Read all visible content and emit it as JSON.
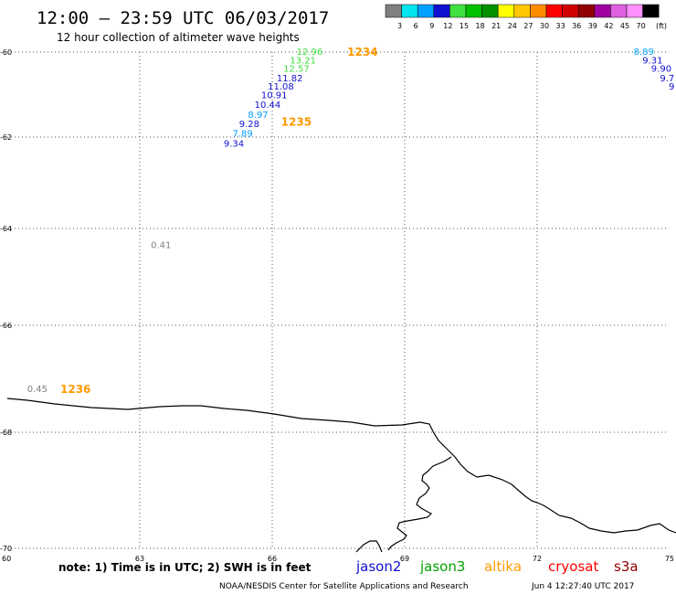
{
  "header": {
    "title": "12:00 — 23:59 UTC 06/03/2017",
    "subtitle": "12 hour collection of altimeter wave heights"
  },
  "color_scale": {
    "unit": "(ft)",
    "bins": [
      {
        "label": "3",
        "color": "#7f7f7f"
      },
      {
        "label": "6",
        "color": "#00e5ee"
      },
      {
        "label": "9",
        "color": "#00a0ff"
      },
      {
        "label": "12",
        "color": "#1010d0"
      },
      {
        "label": "15",
        "color": "#40e040"
      },
      {
        "label": "18",
        "color": "#00c000"
      },
      {
        "label": "21",
        "color": "#009000"
      },
      {
        "label": "24",
        "color": "#ffff00"
      },
      {
        "label": "27",
        "color": "#ffc800"
      },
      {
        "label": "30",
        "color": "#ff8c00"
      },
      {
        "label": "33",
        "color": "#ff0000"
      },
      {
        "label": "36",
        "color": "#d00000"
      },
      {
        "label": "39",
        "color": "#900000"
      },
      {
        "label": "42",
        "color": "#a000a0"
      },
      {
        "label": "45",
        "color": "#e060e0"
      },
      {
        "label": "70",
        "color": "#ff90ff"
      },
      {
        "label": "",
        "color": "#000000"
      }
    ]
  },
  "axes": {
    "lon_ticks": [
      "60",
      "63",
      "66",
      "69",
      "72",
      "75"
    ],
    "lat_ticks": [
      "-60",
      "-62",
      "-64",
      "-66",
      "-68",
      "-70"
    ],
    "lon_range": [
      60,
      75
    ],
    "lat_range": [
      -70,
      -60
    ]
  },
  "passes": [
    {
      "label": "1234",
      "lon": 67.7,
      "lat": -60.0,
      "color": "#ff9900"
    },
    {
      "label": "1235",
      "lon": 66.2,
      "lat": -61.65,
      "color": "#ff9900"
    },
    {
      "label": "1236",
      "lon": 61.2,
      "lat": -67.2,
      "color": "#ff9900"
    }
  ],
  "observations": [
    {
      "value": "12.96",
      "lon": 66.55,
      "lat": -60.0,
      "color": "#40e040"
    },
    {
      "value": "13.21",
      "lon": 66.4,
      "lat": -60.2,
      "color": "#40e040"
    },
    {
      "value": "12.57",
      "lon": 66.25,
      "lat": -60.4,
      "color": "#40e040"
    },
    {
      "value": "11.82",
      "lon": 66.1,
      "lat": -60.62,
      "color": "#1010d0"
    },
    {
      "value": "11.08",
      "lon": 65.9,
      "lat": -60.82,
      "color": "#1010d0"
    },
    {
      "value": "10.91",
      "lon": 65.75,
      "lat": -61.02,
      "color": "#1010d0"
    },
    {
      "value": "10.44",
      "lon": 65.6,
      "lat": -61.25,
      "color": "#1010d0"
    },
    {
      "value": "8.97",
      "lon": 65.45,
      "lat": -61.48,
      "color": "#00a0ff"
    },
    {
      "value": "9.28",
      "lon": 65.25,
      "lat": -61.7,
      "color": "#1010d0"
    },
    {
      "value": "7.89",
      "lon": 65.1,
      "lat": -61.92,
      "color": "#00a0ff"
    },
    {
      "value": "9.34",
      "lon": 64.9,
      "lat": -62.15,
      "color": "#1010d0"
    },
    {
      "value": "0.41",
      "lon": 63.25,
      "lat": -64.35,
      "color": "#7f7f7f"
    },
    {
      "value": "0.45",
      "lon": 60.45,
      "lat": -67.2,
      "color": "#7f7f7f"
    },
    {
      "value": "8.89",
      "lon": 74.2,
      "lat": -60.0,
      "color": "#00a0ff"
    },
    {
      "value": "9.31",
      "lon": 74.4,
      "lat": -60.2,
      "color": "#1010d0"
    },
    {
      "value": "9.90",
      "lon": 74.6,
      "lat": -60.4,
      "color": "#1010d0"
    },
    {
      "value": "9.7",
      "lon": 74.8,
      "lat": -60.62,
      "color": "#1010d0"
    },
    {
      "value": "9",
      "lon": 75.0,
      "lat": -60.82,
      "color": "#1010d0"
    }
  ],
  "note": "note:  1) Time is in UTC;  2) SWH is in feet",
  "legend": [
    {
      "label": "jason2",
      "color": "#1010d0"
    },
    {
      "label": "jason3",
      "color": "#00a000"
    },
    {
      "label": "altika",
      "color": "#ff9900"
    },
    {
      "label": "cryosat",
      "color": "#ff0000"
    },
    {
      "label": "s3a",
      "color": "#900000"
    }
  ],
  "credit": "NOAA/NESDIS Center for Satellite Applications and Research",
  "timestamp": "Jun  4 12:27:40 UTC 2017"
}
